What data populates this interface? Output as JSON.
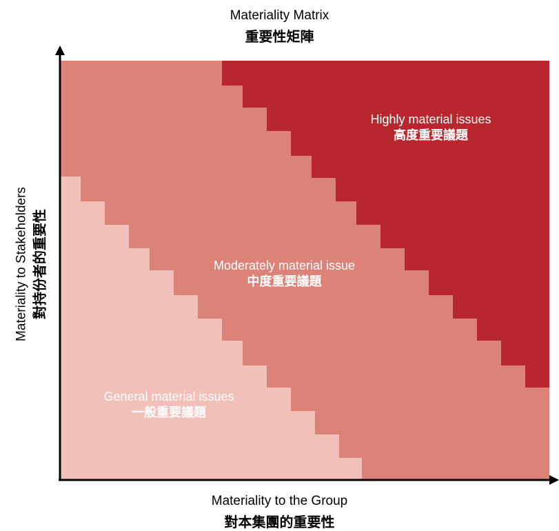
{
  "title": {
    "en": "Materiality Matrix",
    "zh": "重要性矩陣"
  },
  "x_axis": {
    "en": "Materiality to the Group",
    "zh": "對本集團的重要性"
  },
  "y_axis": {
    "en": "Materiality to Stakeholders",
    "zh": "對持份者的重要性"
  },
  "regions": {
    "high": {
      "en": "Highly material issues",
      "zh": "高度重要議題",
      "color": "#b8262e"
    },
    "moderate": {
      "en": "Moderately material issue",
      "zh": "中度重要議題",
      "color": "#dd8278"
    },
    "general": {
      "en": "General material issues",
      "zh": "一般重要議題",
      "color": "#f2c0b9"
    }
  },
  "colors": {
    "axis": "#000000",
    "text_on_fill": "#ffffff"
  }
}
